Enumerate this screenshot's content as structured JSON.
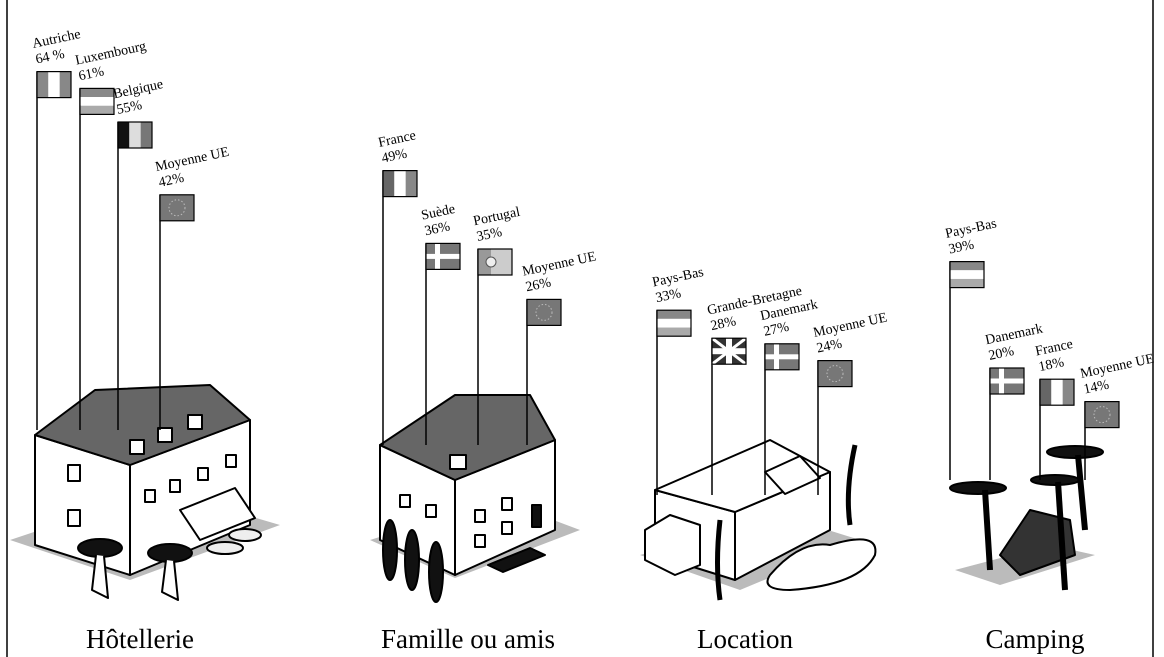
{
  "chart_data": [
    {
      "type": "flagpole",
      "title": "Hôtellerie",
      "categories": [
        "Autriche",
        "Luxembourg",
        "Belgique",
        "Moyenne UE"
      ],
      "values": [
        64,
        61,
        55,
        42
      ],
      "value_labels": [
        "64 %",
        "61%",
        "55%",
        "42%"
      ]
    },
    {
      "type": "flagpole",
      "title": "Famille ou amis",
      "categories": [
        "France",
        "Suède",
        "Portugal",
        "Moyenne UE"
      ],
      "values": [
        49,
        36,
        35,
        26
      ],
      "value_labels": [
        "49%",
        "36%",
        "35%",
        "26%"
      ]
    },
    {
      "type": "flagpole",
      "title": "Location",
      "categories": [
        "Pays-Bas",
        "Grande-Bretagne",
        "Danemark",
        "Moyenne UE"
      ],
      "values": [
        33,
        28,
        27,
        24
      ],
      "value_labels": [
        "33%",
        "28%",
        "27%",
        "24%"
      ]
    },
    {
      "type": "flagpole",
      "title": "Camping",
      "categories": [
        "Pays-Bas",
        "Danemark",
        "France",
        "Moyenne UE"
      ],
      "values": [
        39,
        20,
        18,
        14
      ],
      "value_labels": [
        "39%",
        "20%",
        "18%",
        "14%"
      ]
    }
  ]
}
